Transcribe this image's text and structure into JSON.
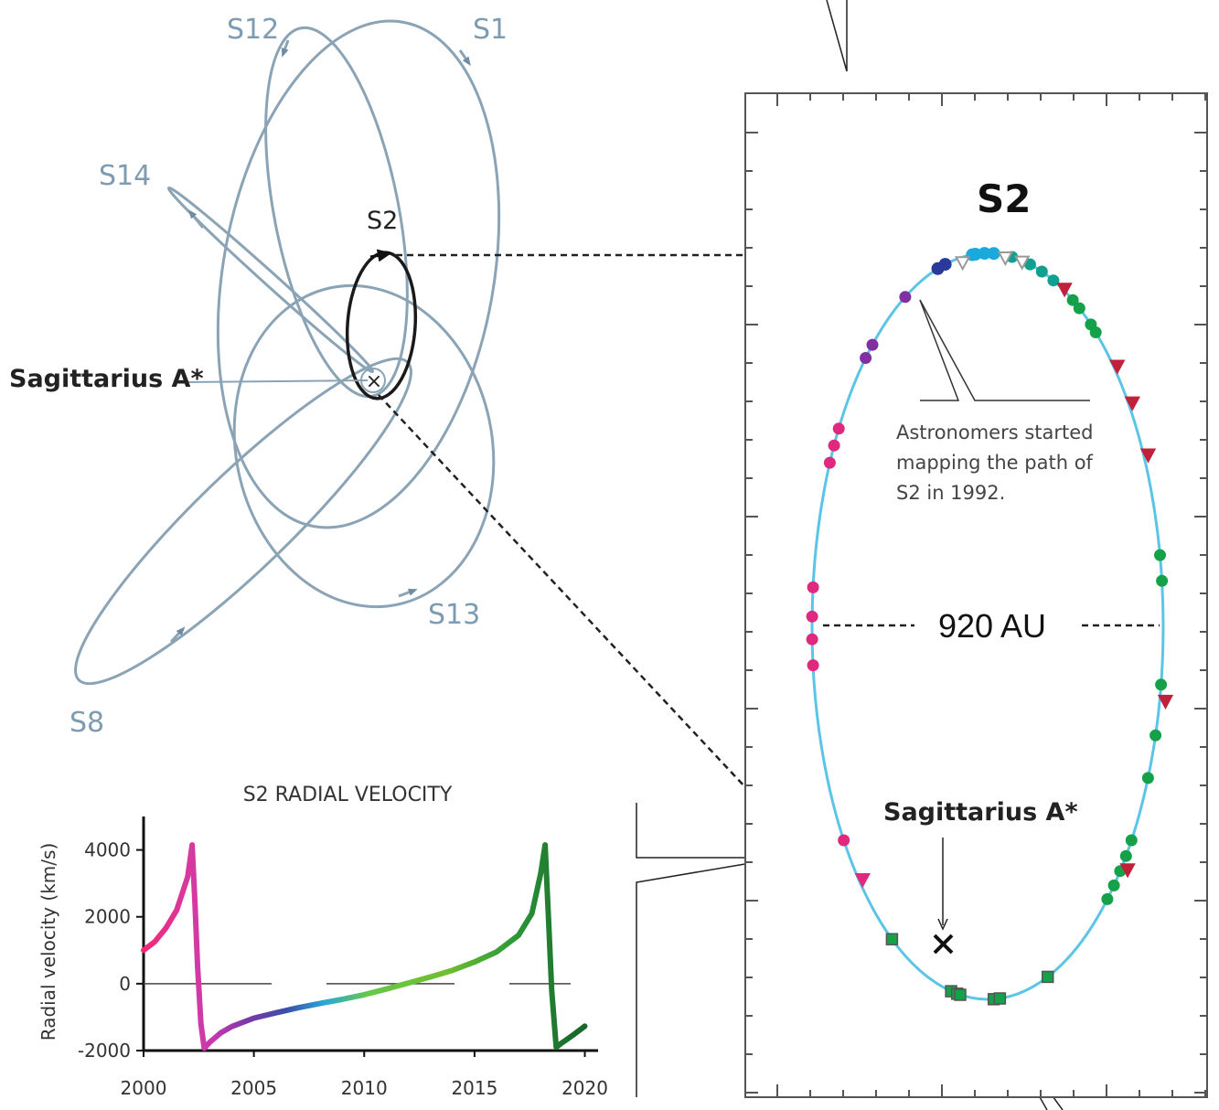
{
  "orbits_panel": {
    "star_labels": [
      "S12",
      "S1",
      "S14",
      "S2",
      "S13",
      "S8"
    ],
    "center_label": "Sagittarius A*"
  },
  "s2_panel": {
    "title": "S2",
    "width_label": "920 AU",
    "note": [
      "Astronomers started",
      "mapping the path of",
      "S2 in 1992."
    ],
    "center_label": "Sagittarius A*"
  },
  "colors": {
    "orbit_lines": "#8aa3b5",
    "s2_orbit": "#1a1a1a",
    "s2_ellipse": "#5cc4e6",
    "pink": "#e0287e",
    "purple": "#8030a0",
    "navy": "#2a3a9a",
    "cyan": "#19a9dc",
    "teal": "#10a090",
    "green": "#15a04a",
    "red": "#c0203a"
  },
  "chart_data": {
    "type": "line",
    "title": "S2 RADIAL VELOCITY",
    "xlabel": "",
    "ylabel": "Radial velocity (km/s)",
    "xlim": [
      2000,
      2020.6
    ],
    "ylim": [
      -2000,
      5000
    ],
    "xticks": [
      2000,
      2005,
      2010,
      2015,
      2020
    ],
    "yticks": [
      4000,
      2000,
      0,
      -2000
    ],
    "series": [
      {
        "x": [
          2000,
          2000.5,
          2001,
          2001.5,
          2002,
          2002.2,
          2002.33,
          2002.45,
          2002.6,
          2002.75,
          2003,
          2003.5,
          2004,
          2005,
          2006,
          2007,
          2008,
          2009,
          2010,
          2011,
          2012,
          2013,
          2014,
          2015,
          2016,
          2017,
          2017.6,
          2018.0,
          2018.2,
          2018.35,
          2018.5,
          2018.7,
          2019,
          2019.5,
          2020
        ],
        "values": [
          1000,
          1250,
          1650,
          2200,
          3200,
          4150,
          2400,
          500,
          -1200,
          -1930,
          -1750,
          -1470,
          -1280,
          -1030,
          -870,
          -720,
          -590,
          -470,
          -330,
          -160,
          20,
          200,
          400,
          650,
          950,
          1450,
          2100,
          3300,
          4150,
          2000,
          -200,
          -1900,
          -1750,
          -1520,
          -1270
        ]
      }
    ]
  }
}
